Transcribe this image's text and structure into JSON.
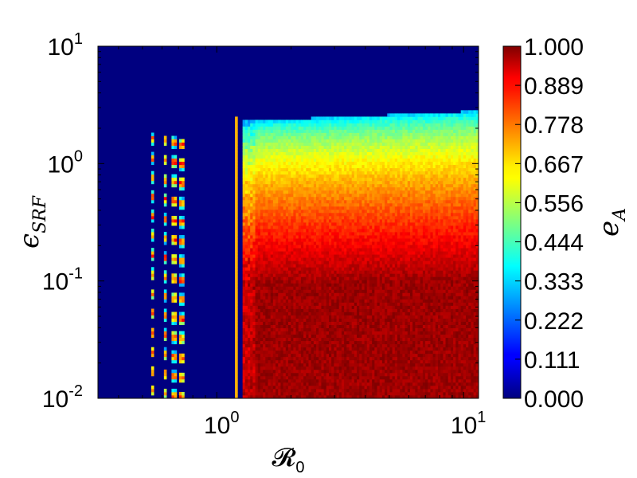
{
  "chart_data": {
    "type": "heatmap",
    "title": "",
    "xlabel": "𝓡",
    "xlabel_sub": "0",
    "ylabel": "ϵ",
    "ylabel_sub": "SRF",
    "xscale": "log",
    "yscale": "log",
    "xlim": [
      0.33,
      11.5
    ],
    "ylim": [
      0.01,
      10
    ],
    "x_ticks": [
      {
        "value": 1,
        "base": "10",
        "exp": "0"
      },
      {
        "value": 10,
        "base": "10",
        "exp": "1"
      }
    ],
    "y_ticks": [
      {
        "value": 0.01,
        "base": "10",
        "exp": "-2"
      },
      {
        "value": 0.1,
        "base": "10",
        "exp": "-1"
      },
      {
        "value": 1,
        "base": "10",
        "exp": "0"
      },
      {
        "value": 10,
        "base": "10",
        "exp": "1"
      }
    ],
    "colorbar": {
      "label": "e",
      "label_sub": "A",
      "range": [
        0,
        1
      ],
      "colormap": "jet",
      "ticks": [
        "1.000",
        "0.889",
        "0.778",
        "0.667",
        "0.556",
        "0.444",
        "0.333",
        "0.222",
        "0.111",
        "0.000"
      ]
    },
    "features": {
      "low_r0_islands": {
        "x_centers": [
          0.55,
          0.62,
          0.67,
          0.72
        ],
        "y_range": [
          0.01,
          2.0
        ],
        "value": 0.45
      },
      "threshold_line": {
        "x": 1.2,
        "y_range": [
          0.01,
          2.5
        ],
        "value": 0.7
      },
      "active_region": {
        "x_start": 1.28,
        "y_edge_at_x_start": 2.3,
        "y_edge_at_x_end": 2.8,
        "value_low_eps": 0.97,
        "value_at_edge": 0.3
      }
    }
  }
}
